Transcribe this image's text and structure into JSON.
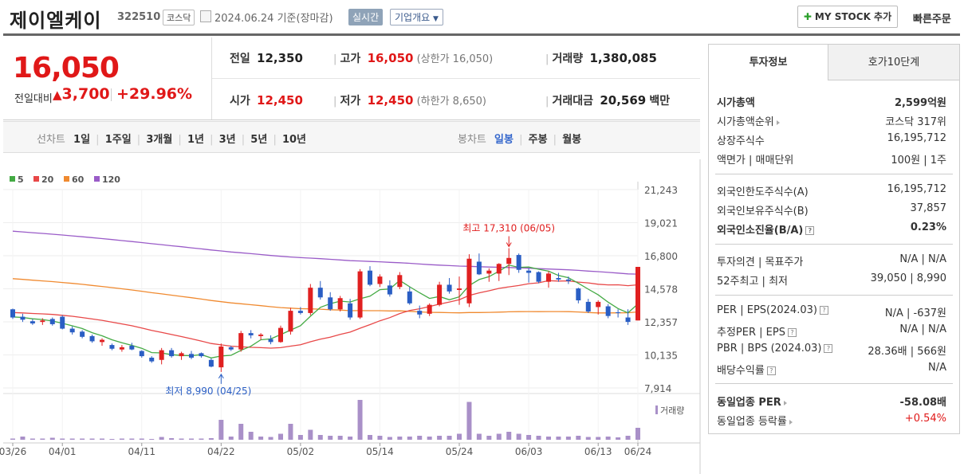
{
  "header": {
    "name": "제이엘케이",
    "code": "322510",
    "market": "코스닥",
    "date": "2024.06.24",
    "basis": "기준(장마감)",
    "realtime": "실시간",
    "company_info": "기업개요",
    "mystock": "MY STOCK 추가",
    "quick_order": "빠른주문"
  },
  "price": {
    "current": "16,050",
    "change_label": "전일대비",
    "change_value": "3,700",
    "change_pct": "+29.96%"
  },
  "quote": {
    "prev_label": "전일",
    "prev": "12,350",
    "high_label": "고가",
    "high": "16,050",
    "upper_limit": "(상한가 16,050)",
    "volume_label": "거래량",
    "volume": "1,380,085",
    "open_label": "시가",
    "open": "12,450",
    "low_label": "저가",
    "low": "12,450",
    "lower_limit": "(하한가 8,650)",
    "amount_label": "거래대금",
    "amount": "20,569",
    "amount_unit": "백만"
  },
  "period_tabs": {
    "label": "선차트",
    "items": [
      "1일",
      "1주일",
      "3개월",
      "1년",
      "3년",
      "5년",
      "10년"
    ]
  },
  "candle_tabs": {
    "label": "봉차트",
    "items": [
      "일봉",
      "주봉",
      "월봉"
    ],
    "active": "일봉"
  },
  "legend": [
    {
      "name": "5",
      "color": "#44aa44"
    },
    {
      "name": "20",
      "color": "#e84848"
    },
    {
      "name": "60",
      "color": "#f08a30"
    },
    {
      "name": "120",
      "color": "#9a5cc8"
    }
  ],
  "chart_data": {
    "type": "candlestick",
    "y_ticks": [
      "21,243",
      "19,021",
      "16,800",
      "14,578",
      "12,357",
      "10,135",
      "7,914"
    ],
    "ylim": [
      7914,
      21243
    ],
    "x_ticks": [
      "03/26",
      "04/01",
      "04/11",
      "04/22",
      "05/02",
      "05/14",
      "05/24",
      "06/03",
      "06/13",
      "06/24"
    ],
    "annotations": {
      "high": "최고 17,310 (06/05)",
      "low": "최저 8,990 (04/25)"
    },
    "volume_label": "거래량",
    "candles": [
      [
        13200,
        13250,
        12550,
        12650
      ],
      [
        12700,
        12900,
        12350,
        12500
      ],
      [
        12400,
        12550,
        12150,
        12250
      ],
      [
        12350,
        12600,
        12150,
        12450
      ],
      [
        12550,
        12650,
        12100,
        12200
      ],
      [
        12700,
        12800,
        11850,
        11900
      ],
      [
        11900,
        12050,
        11500,
        11650
      ],
      [
        11700,
        11800,
        11250,
        11350
      ],
      [
        11400,
        11500,
        10950,
        11050
      ],
      [
        11000,
        11250,
        10750,
        11150
      ],
      [
        10800,
        10900,
        10450,
        10550
      ],
      [
        10500,
        10800,
        10350,
        10650
      ],
      [
        10750,
        10950,
        10450,
        10500
      ],
      [
        10400,
        10450,
        9950,
        10050
      ],
      [
        9950,
        10050,
        9600,
        9700
      ],
      [
        9800,
        10600,
        9500,
        10450
      ],
      [
        10450,
        10600,
        9950,
        10050
      ],
      [
        10050,
        10350,
        9800,
        10250
      ],
      [
        10200,
        10400,
        9850,
        9950
      ],
      [
        10250,
        10300,
        9950,
        10050
      ],
      [
        9800,
        9900,
        9300,
        9350
      ],
      [
        9300,
        10900,
        8990,
        10700
      ],
      [
        10650,
        10750,
        10400,
        10500
      ],
      [
        10500,
        11750,
        10350,
        11600
      ],
      [
        11600,
        11800,
        11250,
        11450
      ],
      [
        11400,
        11600,
        11150,
        11500
      ],
      [
        11200,
        11450,
        10850,
        11000
      ],
      [
        11000,
        12100,
        10950,
        11950
      ],
      [
        11700,
        13300,
        11500,
        13100
      ],
      [
        13100,
        13350,
        12850,
        12950
      ],
      [
        12950,
        14900,
        12800,
        14650
      ],
      [
        14650,
        15100,
        13850,
        14000
      ],
      [
        14000,
        14350,
        13100,
        13200
      ],
      [
        13200,
        14100,
        13050,
        13950
      ],
      [
        13600,
        13900,
        12500,
        12650
      ],
      [
        12650,
        15900,
        12550,
        15750
      ],
      [
        15800,
        16100,
        14750,
        14850
      ],
      [
        14900,
        15550,
        14700,
        15400
      ],
      [
        14800,
        15150,
        14050,
        14200
      ],
      [
        14700,
        15700,
        14550,
        15500
      ],
      [
        14400,
        14700,
        13500,
        13600
      ],
      [
        13100,
        13450,
        12600,
        12850
      ],
      [
        12900,
        13600,
        12750,
        13500
      ],
      [
        13500,
        15050,
        13400,
        14850
      ],
      [
        14850,
        15300,
        14250,
        14400
      ],
      [
        14500,
        15400,
        13500,
        14600
      ],
      [
        13600,
        16900,
        13350,
        16600
      ],
      [
        16400,
        16950,
        15500,
        15550
      ],
      [
        15600,
        15950,
        15050,
        15800
      ],
      [
        15600,
        16300,
        15100,
        16250
      ],
      [
        16250,
        17310,
        15500,
        16650
      ],
      [
        16850,
        16950,
        15650,
        15850
      ],
      [
        15800,
        15950,
        15000,
        15650
      ],
      [
        15700,
        15750,
        14950,
        15050
      ],
      [
        15050,
        15750,
        14650,
        15600
      ],
      [
        15300,
        15650,
        15050,
        15200
      ],
      [
        15200,
        15400,
        14900,
        15100
      ],
      [
        14600,
        14650,
        13600,
        13800
      ],
      [
        13700,
        13900,
        12950,
        13050
      ],
      [
        13350,
        13800,
        12850,
        13700
      ],
      [
        13400,
        13550,
        12600,
        12750
      ],
      [
        13000,
        13200,
        12650,
        12950
      ],
      [
        12650,
        13200,
        12150,
        12350
      ],
      [
        12450,
        16050,
        12450,
        16050
      ]
    ],
    "volumes": [
      3,
      8,
      3,
      3,
      5,
      3,
      3,
      3,
      3,
      3,
      2,
      3,
      3,
      3,
      2,
      7,
      4,
      3,
      3,
      3,
      4,
      50,
      8,
      40,
      20,
      8,
      7,
      15,
      40,
      12,
      25,
      12,
      10,
      10,
      8,
      100,
      12,
      10,
      7,
      8,
      8,
      10,
      8,
      10,
      10,
      15,
      95,
      15,
      10,
      15,
      20,
      15,
      12,
      10,
      8,
      8,
      8,
      10,
      7,
      7,
      8,
      6,
      10,
      30
    ]
  },
  "side": {
    "tab1": "투자정보",
    "tab2": "호가10단계",
    "rows": [
      {
        "l": "시가총액",
        "v": "2,599억원",
        "bold": true
      },
      {
        "l": "시가총액순위",
        "v": "코스닥 317위",
        "tri": true
      },
      {
        "l": "상장주식수",
        "v": "16,195,712"
      },
      {
        "l": "액면가 | 매매단위",
        "v": "100원 | 1주"
      },
      {
        "l": "외국인한도주식수(A)",
        "v": "16,195,712"
      },
      {
        "l": "외국인보유주식수(B)",
        "v": "37,857"
      },
      {
        "l": "외국인소진율(B/A)",
        "v": "0.23%",
        "bold": true,
        "q": true
      },
      {
        "l": "투자의견 | 목표주가",
        "v": "N/A | N/A"
      },
      {
        "l": "52주최고 | 최저",
        "v": "39,050 | 8,990"
      },
      {
        "l": "PER | EPS(2024.03)",
        "v": "N/A | -637원",
        "q": true
      },
      {
        "l": "추정PER | EPS",
        "v": "N/A | N/A",
        "q": true
      },
      {
        "l": "PBR | BPS (2024.03)",
        "v": "28.36배 | 566원",
        "q": true
      },
      {
        "l": "배당수익률",
        "v": "N/A",
        "q": true
      },
      {
        "l": "동일업종 PER",
        "v": "-58.08배",
        "bold": true,
        "tri": true
      },
      {
        "l": "동일업종 등락률",
        "v": "+0.54%",
        "tri": true,
        "red": true
      }
    ]
  }
}
